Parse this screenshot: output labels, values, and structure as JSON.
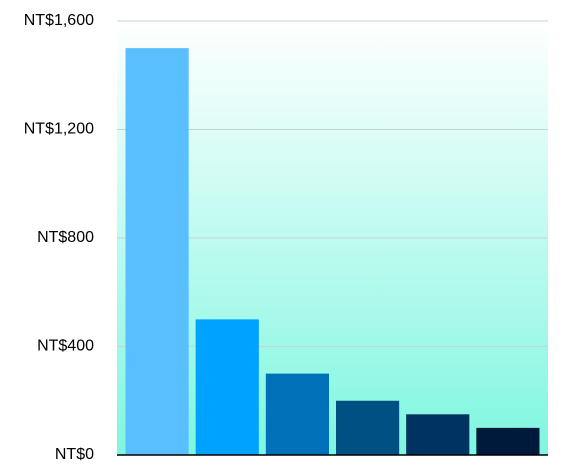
{
  "chart_data": {
    "type": "bar",
    "categories": [
      null,
      null,
      null,
      null,
      null,
      null
    ],
    "values": [
      1500,
      500,
      300,
      200,
      150,
      100
    ],
    "colors": [
      "#5abfff",
      "#00a2ff",
      "#0071b8",
      "#005083",
      "#00335f",
      "#001a3c"
    ],
    "ylim": [
      0,
      1600
    ],
    "yticks": [
      {
        "value": 0,
        "label": "NT$0"
      },
      {
        "value": 400,
        "label": "NT$400"
      },
      {
        "value": 800,
        "label": "NT$800"
      },
      {
        "value": 1200,
        "label": "NT$1,200"
      },
      {
        "value": 1600,
        "label": "NT$1,600"
      }
    ],
    "grid": true
  }
}
